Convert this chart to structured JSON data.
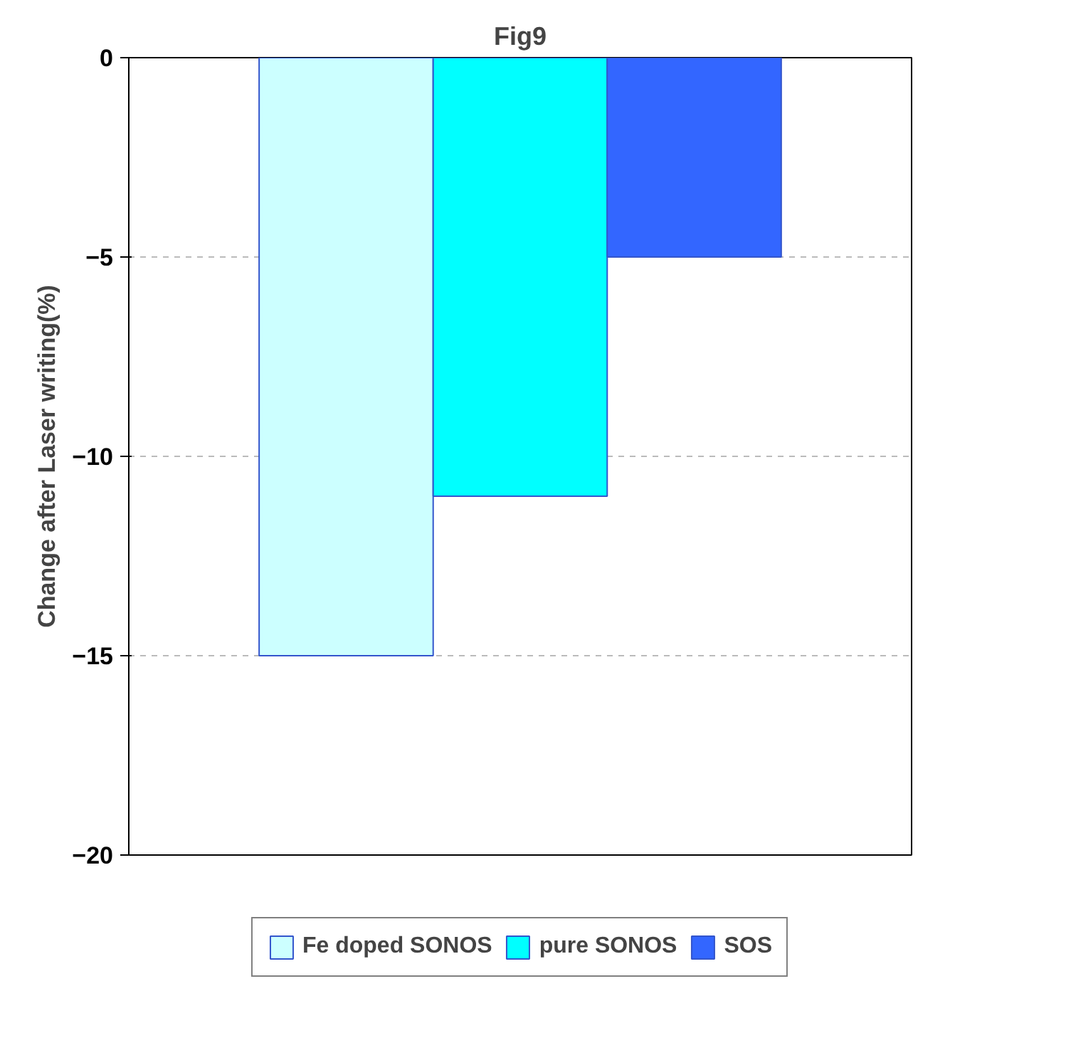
{
  "chart_data": {
    "type": "bar",
    "title": "Fig9",
    "ylabel": "Change after Laser writing(%)",
    "categories": [
      null
    ],
    "series": [
      {
        "name": "Fe doped SONOS",
        "color": "#ccffff",
        "values": [
          -15
        ]
      },
      {
        "name": "pure SONOS",
        "color": "#00ffff",
        "values": [
          -11
        ]
      },
      {
        "name": "SOS",
        "color": "#3366ff",
        "values": [
          -5
        ]
      }
    ],
    "ylim": [
      -20,
      0
    ],
    "yticks": [
      0,
      -5,
      -10,
      -15,
      -20
    ],
    "grid": "y",
    "legend": "bottom",
    "tick_labels": "y"
  }
}
